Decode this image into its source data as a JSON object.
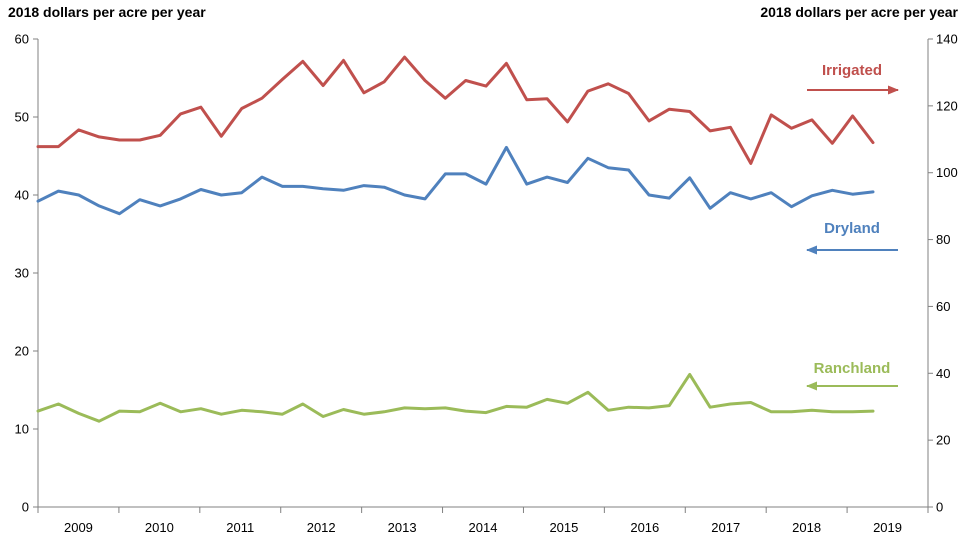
{
  "chart_data": {
    "type": "line",
    "title": "",
    "ylabel_left": "2018 dollars per acre per year",
    "ylabel_right": "2018 dollars per acre per year",
    "ylim_left": [
      0,
      60
    ],
    "ylim_right": [
      0,
      140
    ],
    "yticks_left": [
      "0",
      "10",
      "20",
      "30",
      "40",
      "50",
      "60"
    ],
    "yticks_right": [
      "0",
      "20",
      "40",
      "60",
      "80",
      "100",
      "120",
      "140"
    ],
    "x_tick_labels": [
      "2009",
      "2010",
      "2011",
      "2012",
      "2013",
      "2014",
      "2015",
      "2016",
      "2017",
      "2018",
      "2019"
    ],
    "grid": false,
    "series": [
      {
        "name": "Irrigated",
        "axis": "right",
        "color": "#c0504d",
        "arrow": "right",
        "values": [
          107.8,
          107.8,
          112.8,
          110.7,
          109.8,
          109.8,
          111.2,
          117.6,
          119.6,
          110.9,
          119.2,
          122.3,
          127.9,
          133.3,
          126.1,
          133.6,
          123.9,
          127.2,
          134.6,
          127.6,
          122.3,
          127.6,
          125.9,
          132.7,
          121.8,
          122.1,
          115.2,
          124.4,
          126.6,
          123.7,
          115.5,
          119.0,
          118.3,
          112.5,
          113.6,
          102.8,
          117.3,
          113.3,
          115.8,
          108.8,
          117.0,
          109.0
        ]
      },
      {
        "name": "Dryland",
        "axis": "left",
        "color": "#4f81bd",
        "arrow": "left",
        "values": [
          39.2,
          40.5,
          40.0,
          38.6,
          37.6,
          39.4,
          38.6,
          39.5,
          40.7,
          40.0,
          40.3,
          42.3,
          41.1,
          41.1,
          40.8,
          40.6,
          41.2,
          41.0,
          40.0,
          39.5,
          42.7,
          42.7,
          41.4,
          46.1,
          41.4,
          42.3,
          41.6,
          44.7,
          43.5,
          43.2,
          40.0,
          39.6,
          42.2,
          38.3,
          40.3,
          39.5,
          40.3,
          38.5,
          39.9,
          40.6,
          40.1,
          40.4
        ]
      },
      {
        "name": "Ranchland",
        "axis": "left",
        "color": "#9bbb59",
        "arrow": "left",
        "values": [
          12.3,
          13.2,
          12.0,
          11.0,
          12.3,
          12.2,
          13.3,
          12.2,
          12.6,
          11.9,
          12.4,
          12.2,
          11.9,
          13.2,
          11.6,
          12.5,
          11.9,
          12.2,
          12.7,
          12.6,
          12.7,
          12.3,
          12.1,
          12.9,
          12.8,
          13.8,
          13.3,
          14.7,
          12.4,
          12.8,
          12.7,
          13.0,
          17.0,
          12.8,
          13.2,
          13.4,
          12.2,
          12.2,
          12.4,
          12.2,
          12.2,
          12.3
        ]
      }
    ]
  }
}
